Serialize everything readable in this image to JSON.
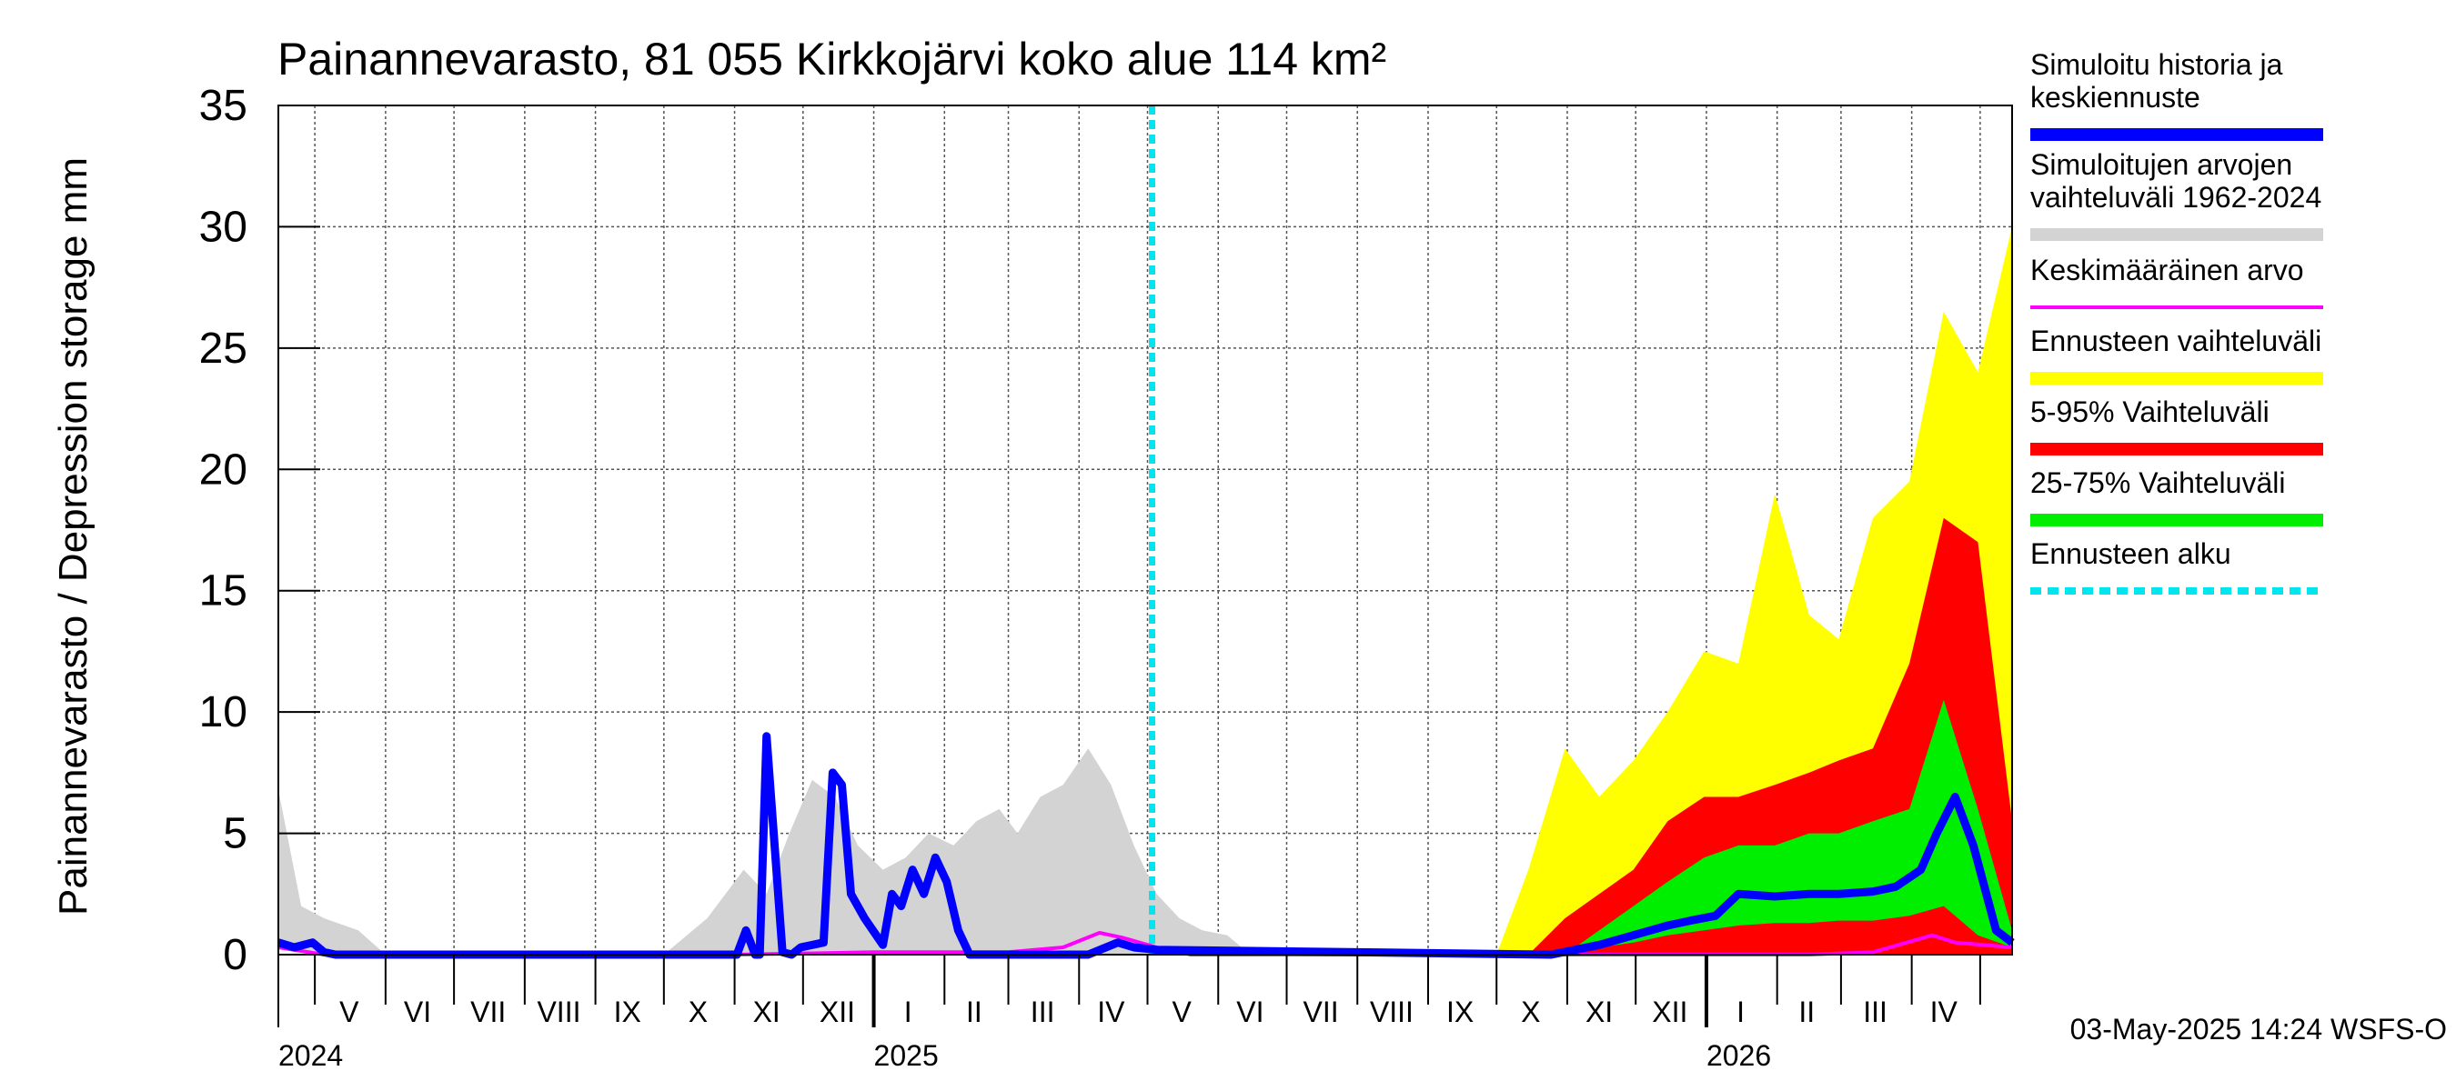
{
  "chart_data": {
    "type": "area",
    "title": "Painannevarasto, 81 055 Kirkkojärvi koko alue 114 km²",
    "ylabel": "Painannevarasto / Depression storage    mm",
    "ylim": [
      0,
      35
    ],
    "yticks": [
      0,
      5,
      10,
      15,
      20,
      25,
      30,
      35
    ],
    "xlim": [
      "2024-04-15",
      "2026-05-15"
    ],
    "grid": true,
    "legend_position": "right",
    "month_labels": [
      {
        "label": "V",
        "date": "2024-05-16"
      },
      {
        "label": "VI",
        "date": "2024-06-15"
      },
      {
        "label": "VII",
        "date": "2024-07-16"
      },
      {
        "label": "VIII",
        "date": "2024-08-16"
      },
      {
        "label": "IX",
        "date": "2024-09-15"
      },
      {
        "label": "X",
        "date": "2024-10-16"
      },
      {
        "label": "XI",
        "date": "2024-11-15"
      },
      {
        "label": "XII",
        "date": "2024-12-16"
      },
      {
        "label": "I",
        "date": "2025-01-16"
      },
      {
        "label": "II",
        "date": "2025-02-14"
      },
      {
        "label": "III",
        "date": "2025-03-16"
      },
      {
        "label": "IV",
        "date": "2025-04-15"
      },
      {
        "label": "V",
        "date": "2025-05-16"
      },
      {
        "label": "VI",
        "date": "2025-06-15"
      },
      {
        "label": "VII",
        "date": "2025-07-16"
      },
      {
        "label": "VIII",
        "date": "2025-08-16"
      },
      {
        "label": "IX",
        "date": "2025-09-15"
      },
      {
        "label": "X",
        "date": "2025-10-16"
      },
      {
        "label": "XI",
        "date": "2025-11-15"
      },
      {
        "label": "XII",
        "date": "2025-12-16"
      },
      {
        "label": "I",
        "date": "2026-01-16"
      },
      {
        "label": "II",
        "date": "2026-02-14"
      },
      {
        "label": "III",
        "date": "2026-03-16"
      },
      {
        "label": "IV",
        "date": "2026-04-15"
      }
    ],
    "year_labels": [
      {
        "label": "2024",
        "date": "2024-04-15"
      },
      {
        "label": "2025",
        "date": "2025-01-01"
      },
      {
        "label": "2026",
        "date": "2026-01-01"
      }
    ],
    "forecast_start": "2025-05-03",
    "series": [
      {
        "name": "Simuloitujen arvojen vaihteluväli 1962-2024",
        "kind": "band",
        "color": "#d3d3d3",
        "x": [
          "2024-04-15",
          "2024-04-25",
          "2024-05-05",
          "2024-05-20",
          "2024-06-01",
          "2024-10-01",
          "2024-10-20",
          "2024-11-05",
          "2024-11-15",
          "2024-11-25",
          "2024-12-05",
          "2024-12-15",
          "2024-12-25",
          "2025-01-05",
          "2025-01-15",
          "2025-01-25",
          "2025-02-05",
          "2025-02-15",
          "2025-02-25",
          "2025-03-05",
          "2025-03-15",
          "2025-03-25",
          "2025-04-05",
          "2025-04-15",
          "2025-04-25",
          "2025-05-05",
          "2025-05-15",
          "2025-05-25",
          "2025-06-05",
          "2025-06-15",
          "2025-09-30",
          "2025-10-15",
          "2025-10-31",
          "2025-11-15",
          "2025-11-30",
          "2025-12-15",
          "2025-12-31",
          "2026-01-15",
          "2026-01-31",
          "2026-02-15",
          "2026-02-28",
          "2026-03-15",
          "2026-03-31",
          "2026-04-15",
          "2026-04-30",
          "2026-05-15"
        ],
        "low": [
          0.5,
          0.2,
          0,
          0,
          0,
          0,
          0,
          0,
          0,
          0,
          0,
          0,
          0,
          0,
          0,
          0,
          0,
          0,
          0,
          0,
          0,
          0,
          0,
          0,
          0,
          0,
          0,
          0,
          0,
          0,
          0,
          0,
          0,
          0.2,
          0.5,
          0.6,
          0.6,
          0.5,
          0.5,
          0.5,
          0.5,
          0.5,
          0.5,
          0.8,
          0.8,
          0.8
        ],
        "high": [
          6.8,
          2.0,
          1.5,
          1.0,
          0,
          0,
          1.5,
          3.5,
          2.5,
          5.0,
          7.2,
          6.5,
          4.5,
          3.5,
          4.0,
          5.0,
          4.5,
          5.5,
          6.0,
          5.0,
          6.5,
          7.0,
          8.5,
          7.0,
          4.5,
          2.5,
          1.5,
          1.0,
          0.8,
          0,
          0,
          1.5,
          2.5,
          3.5,
          4.5,
          5.5,
          4.0,
          5.0,
          5.5,
          4.5,
          6.0,
          5.0,
          6.5,
          8.0,
          6.0,
          7.0
        ]
      },
      {
        "name": "Ennusteen vaihteluväli",
        "kind": "band",
        "color": "#ffff00",
        "x": [
          "2025-10-01",
          "2025-10-15",
          "2025-10-31",
          "2025-11-15",
          "2025-11-30",
          "2025-12-15",
          "2025-12-31",
          "2026-01-15",
          "2026-01-31",
          "2026-02-15",
          "2026-02-28",
          "2026-03-15",
          "2026-03-31",
          "2026-04-15",
          "2026-04-30",
          "2026-05-15"
        ],
        "low": [
          0,
          0,
          0,
          0,
          0,
          0,
          0,
          0,
          0,
          0,
          0,
          0,
          0,
          0,
          0,
          0
        ],
        "high": [
          0,
          3.5,
          8.5,
          6.5,
          8.0,
          10.0,
          12.5,
          12.0,
          19.0,
          14.0,
          13.0,
          18.0,
          19.5,
          26.5,
          24.0,
          30.0
        ]
      },
      {
        "name": "5-95% Vaihteluväli",
        "kind": "band",
        "color": "#ff0000",
        "x": [
          "2025-10-15",
          "2025-10-31",
          "2025-11-15",
          "2025-11-30",
          "2025-12-15",
          "2025-12-31",
          "2026-01-15",
          "2026-01-31",
          "2026-02-15",
          "2026-02-28",
          "2026-03-15",
          "2026-03-31",
          "2026-04-15",
          "2026-04-30",
          "2026-05-15"
        ],
        "low": [
          0,
          0,
          0,
          0,
          0,
          0,
          0,
          0,
          0,
          0,
          0,
          0,
          0,
          0,
          0
        ],
        "high": [
          0,
          1.5,
          2.5,
          3.5,
          5.5,
          6.5,
          6.5,
          7.0,
          7.5,
          8.0,
          8.5,
          12.0,
          18.0,
          17.0,
          5.5
        ]
      },
      {
        "name": "25-75% Vaihteluväli",
        "kind": "band",
        "color": "#00ee00",
        "x": [
          "2025-10-31",
          "2025-11-15",
          "2025-11-30",
          "2025-12-15",
          "2025-12-31",
          "2026-01-15",
          "2026-01-31",
          "2026-02-15",
          "2026-02-28",
          "2026-03-15",
          "2026-03-31",
          "2026-04-15",
          "2026-04-30",
          "2026-05-15"
        ],
        "low": [
          0,
          0.3,
          0.5,
          0.8,
          1.0,
          1.2,
          1.3,
          1.3,
          1.4,
          1.4,
          1.6,
          2.0,
          0.8,
          0.3
        ],
        "high": [
          0,
          1.0,
          2.0,
          3.0,
          4.0,
          4.5,
          4.5,
          5.0,
          5.0,
          5.5,
          6.0,
          10.5,
          6.0,
          1.0
        ]
      },
      {
        "name": "Keskimääräinen arvo",
        "kind": "line",
        "color": "#ff00ff",
        "x": [
          "2024-04-15",
          "2024-05-05",
          "2024-11-01",
          "2025-01-01",
          "2025-03-01",
          "2025-03-25",
          "2025-04-10",
          "2025-04-20",
          "2025-05-05",
          "2025-05-20",
          "2026-02-15",
          "2026-03-15",
          "2026-04-10",
          "2026-04-20",
          "2026-05-15"
        ],
        "y": [
          0.3,
          0,
          0,
          0.1,
          0.1,
          0.3,
          0.9,
          0.7,
          0.3,
          0,
          0,
          0.1,
          0.8,
          0.5,
          0.3
        ]
      },
      {
        "name": "Simuloitu historia ja keskiennuste",
        "kind": "line",
        "color": "#0000ff",
        "x": [
          "2024-04-15",
          "2024-04-22",
          "2024-04-30",
          "2024-05-05",
          "2024-05-10",
          "2024-11-02",
          "2024-11-06",
          "2024-11-10",
          "2024-11-12",
          "2024-11-15",
          "2024-11-22",
          "2024-11-26",
          "2024-11-30",
          "2024-12-10",
          "2024-12-14",
          "2024-12-18",
          "2024-12-22",
          "2024-12-28",
          "2025-01-05",
          "2025-01-09",
          "2025-01-13",
          "2025-01-18",
          "2025-01-23",
          "2025-01-28",
          "2025-02-02",
          "2025-02-07",
          "2025-02-12",
          "2025-03-10",
          "2025-04-05",
          "2025-04-18",
          "2025-04-25",
          "2025-05-05",
          "2025-10-25",
          "2025-11-15",
          "2025-11-30",
          "2025-12-15",
          "2025-12-25",
          "2026-01-05",
          "2026-01-15",
          "2026-01-31",
          "2026-02-15",
          "2026-02-28",
          "2026-03-15",
          "2026-03-25",
          "2026-04-05",
          "2026-04-12",
          "2026-04-20",
          "2026-04-28",
          "2026-05-08",
          "2026-05-15"
        ],
        "y": [
          0.5,
          0.3,
          0.5,
          0.1,
          0,
          0,
          1.0,
          0,
          0,
          9.0,
          0.1,
          0,
          0.3,
          0.5,
          7.5,
          7.0,
          2.5,
          1.5,
          0.4,
          2.5,
          2.0,
          3.5,
          2.5,
          4.0,
          3.0,
          1.0,
          0,
          0,
          0,
          0.5,
          0.3,
          0.2,
          0,
          0.4,
          0.8,
          1.2,
          1.4,
          1.6,
          2.5,
          2.4,
          2.5,
          2.5,
          2.6,
          2.8,
          3.5,
          5.0,
          6.5,
          4.5,
          1.0,
          0.5
        ]
      }
    ],
    "legend": [
      {
        "label": "Simuloitu historia ja keskiennuste",
        "color": "#0000ff",
        "style": "solid"
      },
      {
        "label": "Simuloitujen arvojen vaihteluväli 1962-2024",
        "color": "#d3d3d3",
        "style": "solid"
      },
      {
        "label": "Keskimääräinen arvo",
        "color": "#ff00ff",
        "style": "thin"
      },
      {
        "label": "Ennusteen vaihteluväli",
        "color": "#ffff00",
        "style": "solid"
      },
      {
        "label": "5-95% Vaihteluväli",
        "color": "#ff0000",
        "style": "solid"
      },
      {
        "label": "25-75% Vaihteluväli",
        "color": "#00ee00",
        "style": "solid"
      },
      {
        "label": "Ennusteen alku",
        "color": "#00e5ee",
        "style": "dashed"
      }
    ]
  },
  "footer": "03-May-2025 14:24 WSFS-O"
}
